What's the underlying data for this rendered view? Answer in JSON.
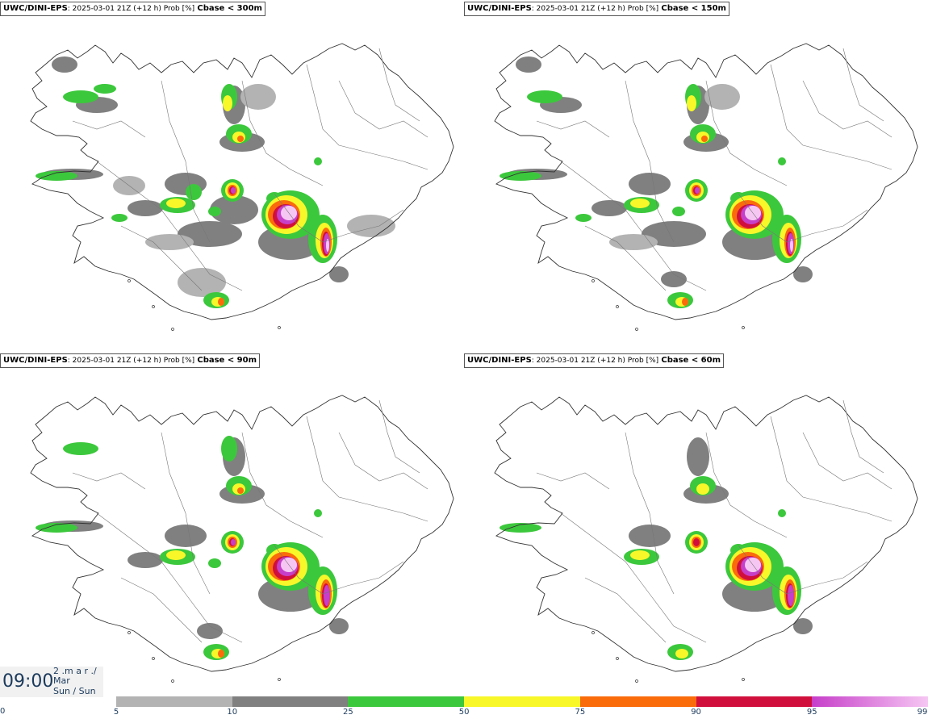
{
  "panels": [
    {
      "source": "UWC/DINI-EPS",
      "meta": ": 2025-03-01 21Z (+12 h) Prob [%]",
      "cbase": "Cbase < 300m",
      "level": 4
    },
    {
      "source": "UWC/DINI-EPS",
      "meta": ": 2025-03-01 21Z (+12 h) Prob [%]",
      "cbase": "Cbase < 150m",
      "level": 3
    },
    {
      "source": "UWC/DINI-EPS",
      "meta": ": 2025-03-01 21Z (+12 h) Prob [%]",
      "cbase": "Cbase < 90m",
      "level": 2
    },
    {
      "source": "UWC/DINI-EPS",
      "meta": ": 2025-03-01 21Z (+12 h) Prob [%]",
      "cbase": "Cbase < 60m",
      "level": 1
    }
  ],
  "time": {
    "clock": "09:00",
    "line1": "2 .m a r ./",
    "line2": "Mar",
    "line3": "Sun / Sun"
  },
  "colorbar": {
    "zero_label": "0",
    "segments": [
      {
        "from": "5",
        "to": "10",
        "color": "#b3b3b3"
      },
      {
        "from": "10",
        "to": "25",
        "color": "#808080"
      },
      {
        "from": "25",
        "to": "50",
        "color": "#3cc83c"
      },
      {
        "from": "50",
        "to": "75",
        "color": "#f7f72a"
      },
      {
        "from": "75",
        "to": "90",
        "color": "#fa6b0a"
      },
      {
        "from": "90",
        "to": "95",
        "color": "#d10f3c"
      },
      {
        "from": "95",
        "to": "99",
        "color": "#c63fc9"
      }
    ],
    "labels": [
      "5",
      "10",
      "25",
      "50",
      "75",
      "90",
      "95",
      "99"
    ],
    "end_color": "#f6c6f3"
  }
}
